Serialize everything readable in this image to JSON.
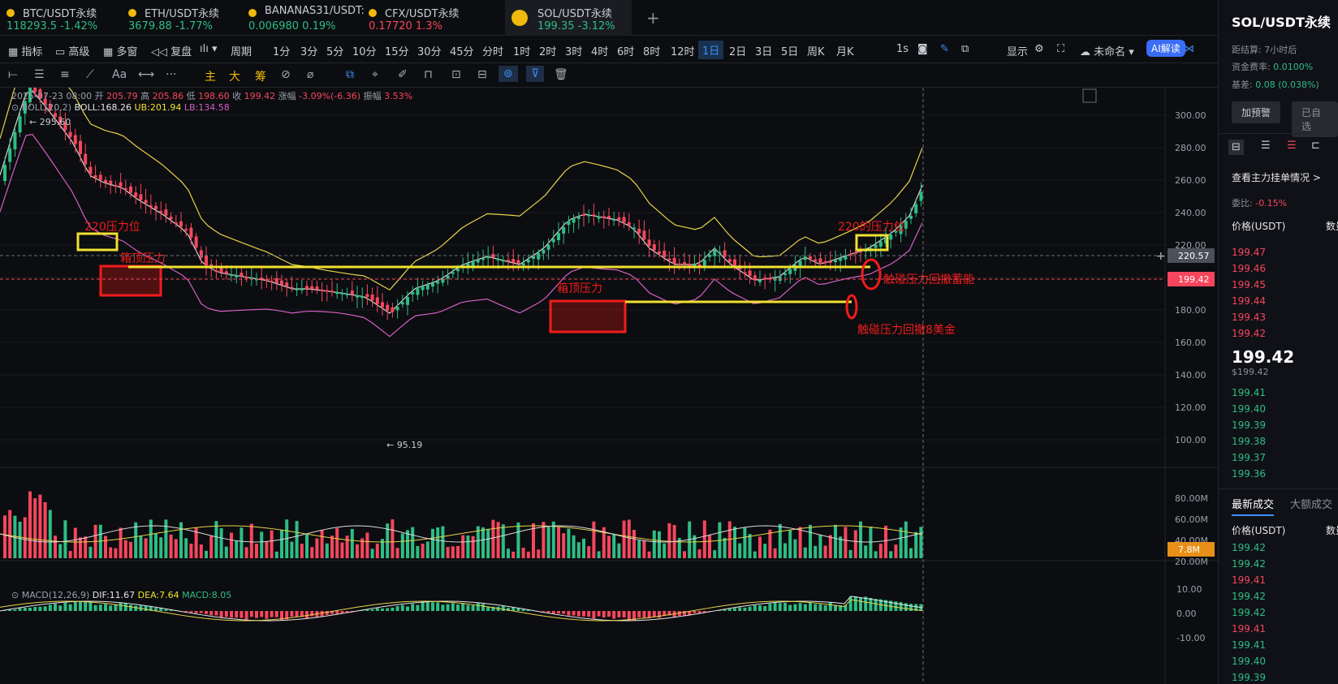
{
  "tabs": [
    {
      "name": "BTC/USDT永续",
      "price": "118293.5",
      "chg": "-1.42%",
      "color": "#2ebd85"
    },
    {
      "name": "ETH/USDT永续",
      "price": "3679.88",
      "chg": "-1.77%",
      "color": "#2ebd85"
    },
    {
      "name": "BANANAS31/USDT:",
      "price": "0.006980",
      "chg": "0.19%",
      "color": "#2ebd85"
    },
    {
      "name": "CFX/USDT永续",
      "price": "0.17720",
      "chg": "1.3%",
      "color": "#f6465d"
    },
    {
      "name": "SOL/USDT永续",
      "price": "199.35",
      "chg": "-3.12%",
      "color": "#2ebd85"
    }
  ],
  "toolbar": {
    "items": [
      "指标",
      "高级",
      "多窗",
      "复盘",
      "",
      "周期",
      "1分",
      "3分",
      "5分",
      "10分",
      "15分",
      "30分",
      "45分",
      "分时",
      "1时",
      "2时",
      "3时",
      "4时",
      "6时",
      "8时",
      "12时",
      "1日",
      "2日",
      "3日",
      "5日",
      "周K",
      "月K"
    ],
    "selected": "1日",
    "right": [
      "1s",
      "显示",
      "未命名",
      "AI解读"
    ]
  },
  "drawtools": {
    "items": [
      "主",
      "大",
      "筹"
    ]
  },
  "info": {
    "date": "2025-07-23 08:00",
    "open_l": "开",
    "open": "205.79",
    "high_l": "高",
    "high": "205.86",
    "low_l": "低",
    "low": "198.60",
    "close_l": "收",
    "close": "199.42",
    "chg_l": "涨幅",
    "chg": "-3.09%(-6.36)",
    "amp_l": "振幅",
    "amp": "3.53%",
    "boll": "BOLL(20,2)",
    "boll_mid": "BOLL:168.26",
    "ub": "UB:201.94",
    "lb": "LB:134.58",
    "macd": "MACD(12,26,9)",
    "dif": "DIF:11.67",
    "dea": "DEA:7.64",
    "macdv": "MACD:8.05"
  },
  "price_axis": [
    "300.00",
    "280.00",
    "260.00",
    "240.00",
    "220.00",
    "200.00",
    "180.00",
    "160.00",
    "140.00",
    "120.00",
    "100.00"
  ],
  "vol_axis": [
    "80.00M",
    "60.00M",
    "40.00M",
    "20.00M"
  ],
  "macd_axis": [
    "10.00",
    "0.00",
    "-10.00"
  ],
  "tags": {
    "line220": "220.57",
    "current": "199.42",
    "vol": "7.8M",
    "high": "← 295.60",
    "low": "← 95.19"
  },
  "annotations": {
    "a1": "220压力位",
    "a2": "箱顶压力",
    "a3": "箱顶压力",
    "a4": "220的压力位",
    "a5": "触碰压力回撤蓄能",
    "a6": "触碰压力回撤8美金"
  },
  "side": {
    "title": "SOL/USDT永续",
    "settle_l": "距结算",
    "settle": "7小时后",
    "fund_l": "资金费率:",
    "fund": "0.0100%",
    "basis_l": "基差:",
    "basis": "0.08 (0.038%)",
    "b1": "加预警",
    "b2": "已自选",
    "main_l": "查看主力挂单情况 >",
    "ratio_l": "委比:",
    "ratio": "-0.15%",
    "col1": "价格(USDT)",
    "col2": "数量",
    "asks": [
      "199.47",
      "199.46",
      "199.45",
      "199.44",
      "199.43",
      "199.42"
    ],
    "last": "199.42",
    "last_usd": "$199.42",
    "bids": [
      "199.41",
      "199.40",
      "199.39",
      "199.38",
      "199.37",
      "199.36"
    ],
    "trades_l": "最新成交",
    "trades_l2": "大额成交",
    "trades": [
      [
        "199.42",
        "#2ebd85"
      ],
      [
        "199.42",
        "#2ebd85"
      ],
      [
        "199.41",
        "#f6465d"
      ],
      [
        "199.42",
        "#2ebd85"
      ],
      [
        "199.42",
        "#2ebd85"
      ],
      [
        "199.41",
        "#f6465d"
      ],
      [
        "199.41",
        "#2ebd85"
      ],
      [
        "199.40",
        "#2ebd85"
      ],
      [
        "199.39",
        "#2ebd85"
      ]
    ]
  },
  "colors": {
    "up": "#2ebd85",
    "down": "#f6465d",
    "accent": "#3e8ef7",
    "yellow": "#f0e130"
  }
}
